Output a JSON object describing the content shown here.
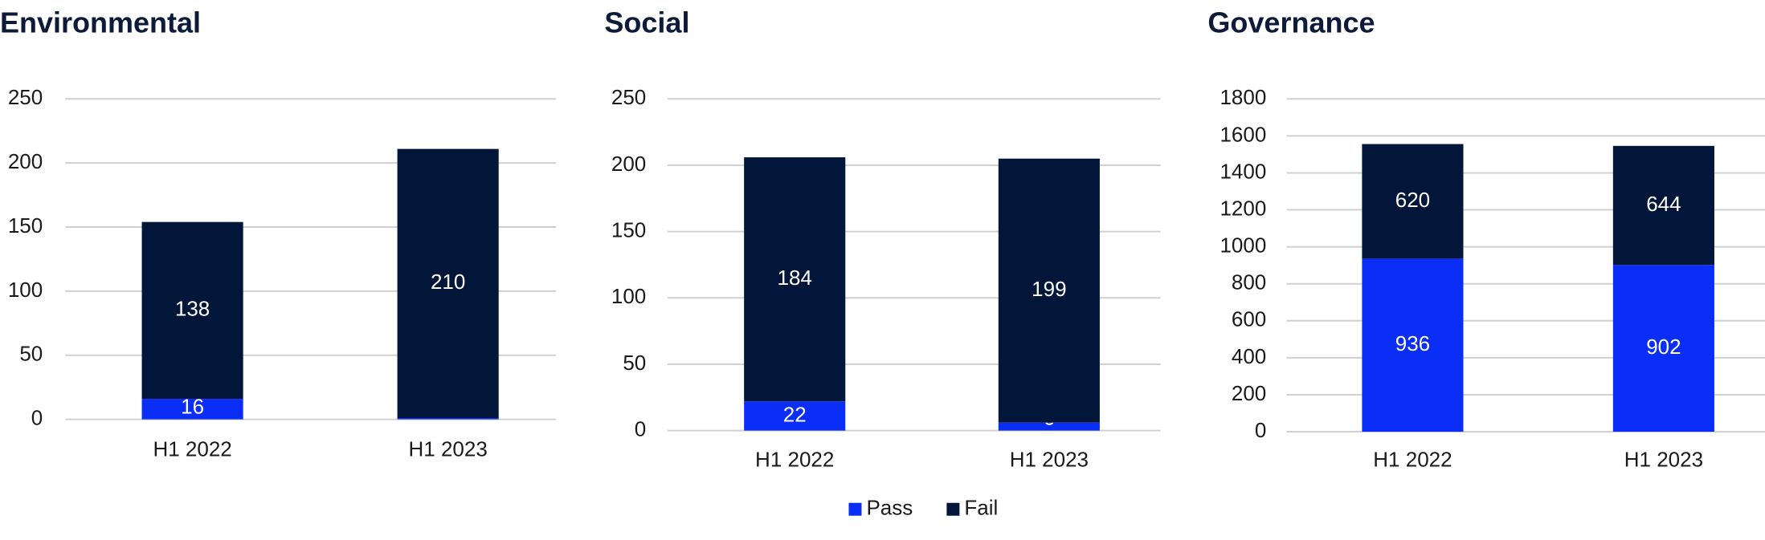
{
  "chart_data": [
    {
      "type": "stacked_bar",
      "title": "Environmental",
      "categories": [
        "H1 2022",
        "H1 2023"
      ],
      "series": [
        {
          "name": "Pass",
          "color": "#0a2ef5",
          "values": [
            16,
            1
          ]
        },
        {
          "name": "Fail",
          "color": "#011638",
          "values": [
            138,
            210
          ]
        }
      ],
      "ylim": [
        0,
        250
      ],
      "yticks": [
        0,
        50,
        100,
        150,
        200,
        250
      ],
      "grid": true
    },
    {
      "type": "stacked_bar",
      "title": "Social",
      "categories": [
        "H1 2022",
        "H1 2023"
      ],
      "series": [
        {
          "name": "Pass",
          "color": "#0a2ef5",
          "values": [
            22,
            6
          ]
        },
        {
          "name": "Fail",
          "color": "#011638",
          "values": [
            184,
            199
          ]
        }
      ],
      "ylim": [
        0,
        250
      ],
      "yticks": [
        0,
        50,
        100,
        150,
        200,
        250
      ],
      "grid": true
    },
    {
      "type": "stacked_bar",
      "title": "Governance",
      "categories": [
        "H1 2022",
        "H1 2023"
      ],
      "series": [
        {
          "name": "Pass",
          "color": "#0a2ef5",
          "values": [
            936,
            902
          ]
        },
        {
          "name": "Fail",
          "color": "#011638",
          "values": [
            620,
            644
          ]
        }
      ],
      "ylim": [
        0,
        1800
      ],
      "yticks": [
        0,
        200,
        400,
        600,
        800,
        1000,
        1200,
        1400,
        1600,
        1800
      ],
      "grid": true
    }
  ]
}
